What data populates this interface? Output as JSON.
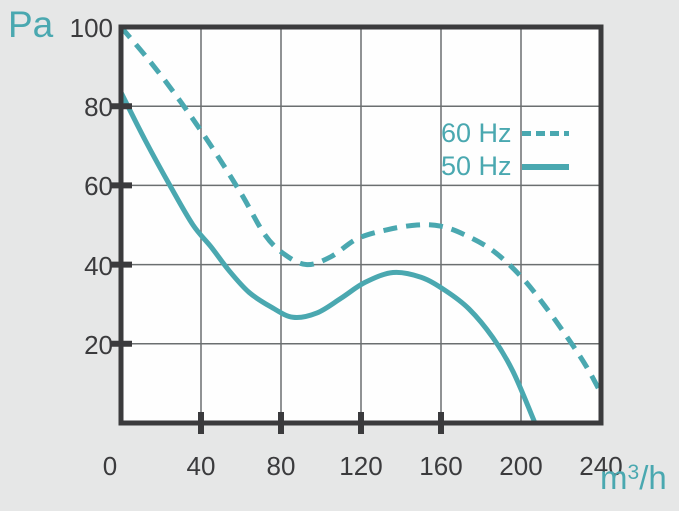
{
  "labels": {
    "y_unit": "Pa",
    "x_unit_base": "m",
    "x_unit_exponent": "3",
    "x_unit_suffix": "/h"
  },
  "legend": {
    "items": [
      {
        "label": "60 Hz",
        "line_style": "dashed"
      },
      {
        "label": "50 Hz",
        "line_style": "solid"
      }
    ]
  },
  "colors": {
    "accent": "#4AA8B0",
    "axis": "#3B3B3D",
    "grid": "#6B6F70",
    "background": "#E6E7E7",
    "plot_background": "#FEFEFE",
    "tick_label": "#3B3B3D"
  },
  "chart_data": {
    "type": "line",
    "title": "",
    "xlabel": "m3/h",
    "ylabel": "Pa",
    "xlim": [
      0,
      240
    ],
    "ylim": [
      0,
      100
    ],
    "x_ticks": [
      0,
      40,
      80,
      120,
      160,
      200,
      240
    ],
    "y_ticks": [
      20,
      40,
      60,
      80,
      100
    ],
    "x_tick_marks": [
      40,
      80,
      120,
      160
    ],
    "y_tick_marks": [
      20,
      40,
      60,
      80
    ],
    "grid": true,
    "legend_position": "inside-upper-right",
    "series": [
      {
        "name": "60 Hz",
        "line_style": "dashed",
        "points": [
          [
            0,
            100
          ],
          [
            15,
            91
          ],
          [
            30,
            81
          ],
          [
            45,
            70
          ],
          [
            60,
            58
          ],
          [
            72,
            47.5
          ],
          [
            82,
            42.5
          ],
          [
            93,
            40
          ],
          [
            105,
            42
          ],
          [
            118,
            46.5
          ],
          [
            133,
            48.8
          ],
          [
            148,
            50
          ],
          [
            160,
            49.7
          ],
          [
            172,
            47.5
          ],
          [
            186,
            43.5
          ],
          [
            200,
            37
          ],
          [
            212,
            29.5
          ],
          [
            224,
            21
          ],
          [
            233,
            14
          ],
          [
            240,
            7.5
          ]
        ]
      },
      {
        "name": "50 Hz",
        "line_style": "solid",
        "points": [
          [
            0,
            83.5
          ],
          [
            12,
            71.5
          ],
          [
            25,
            59.5
          ],
          [
            36,
            50
          ],
          [
            45,
            44.5
          ],
          [
            54,
            38.5
          ],
          [
            64,
            33
          ],
          [
            75,
            29.3
          ],
          [
            86,
            26.7
          ],
          [
            98,
            27.8
          ],
          [
            110,
            31.5
          ],
          [
            122,
            35.5
          ],
          [
            136,
            38
          ],
          [
            150,
            36.8
          ],
          [
            162,
            33.5
          ],
          [
            174,
            28.8
          ],
          [
            186,
            21.5
          ],
          [
            196,
            13
          ],
          [
            207,
            0
          ]
        ]
      }
    ]
  }
}
